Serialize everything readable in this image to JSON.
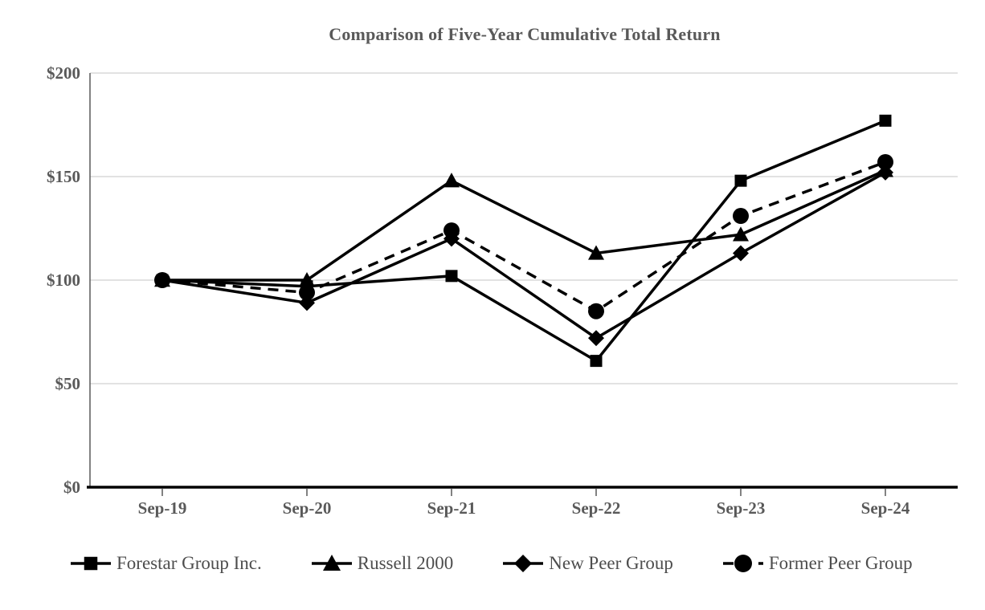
{
  "title": "Comparison of Five-Year Cumulative Total Return",
  "chart_data": {
    "type": "line",
    "title": "Comparison of Five-Year Cumulative Total Return",
    "categories": [
      "Sep-19",
      "Sep-20",
      "Sep-21",
      "Sep-22",
      "Sep-23",
      "Sep-24"
    ],
    "series": [
      {
        "name": "Forestar Group Inc.",
        "marker": "square",
        "line": "solid",
        "values": [
          100,
          97,
          102,
          61,
          148,
          177
        ]
      },
      {
        "name": "Russell 2000",
        "marker": "triangle",
        "line": "solid",
        "values": [
          100,
          100,
          148,
          113,
          122,
          153
        ]
      },
      {
        "name": "New Peer Group",
        "marker": "diamond",
        "line": "solid",
        "values": [
          100,
          89,
          120,
          72,
          113,
          152
        ]
      },
      {
        "name": "Former Peer Group",
        "marker": "circle",
        "line": "dashed",
        "values": [
          100,
          94,
          124,
          85,
          131,
          157
        ]
      }
    ],
    "y_axis": {
      "min": 0,
      "max": 200,
      "tick_values": [
        0,
        50,
        100,
        150,
        200
      ],
      "tick_labels": [
        "$0",
        "$50",
        "$100",
        "$150",
        "$200"
      ]
    },
    "x_axis": {
      "tick_labels": [
        "Sep-19",
        "Sep-20",
        "Sep-21",
        "Sep-22",
        "Sep-23",
        "Sep-24"
      ]
    },
    "grid": "horizontal",
    "legend_position": "bottom",
    "colors": {
      "series": "#000000",
      "gridline": "#d9d9d9",
      "axis_line": "#000000",
      "y_axis_line": "#595959",
      "tick_mark": "#595959",
      "label_text": "#595959",
      "legend_text": "#4d4d4d",
      "background": "#ffffff"
    }
  }
}
